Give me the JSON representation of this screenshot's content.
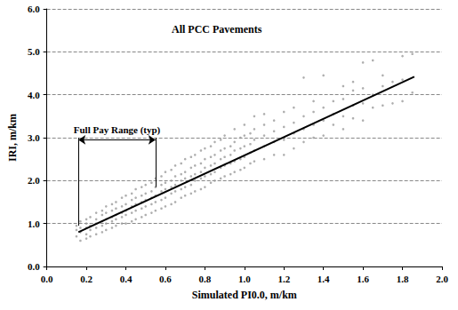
{
  "chart_data": {
    "type": "scatter",
    "title": "All PCC Pavements",
    "x_label": "Simulated PI0.0, m/km",
    "y_label": "IRI, m/km",
    "xlim": [
      0,
      2.0
    ],
    "xticks": [
      {
        "value": 0,
        "label": "0.0"
      },
      0.2,
      0.4,
      0.6,
      0.8,
      {
        "value": 1,
        "label": "1.0"
      },
      1.2,
      1.4,
      1.6,
      1.8,
      {
        "value": 2,
        "label": "2.0"
      }
    ],
    "ylim": [
      0,
      6.0
    ],
    "yticks": [
      {
        "value": 0,
        "label": "0.0"
      },
      {
        "value": 1,
        "label": "1.0"
      },
      {
        "value": 2,
        "label": "2.0"
      },
      {
        "value": 3,
        "label": "3.0"
      },
      {
        "value": 4,
        "label": "4.0"
      },
      {
        "value": 5,
        "label": "5.0"
      },
      {
        "value": 6,
        "label": "6.0"
      }
    ],
    "grid": true,
    "series": [
      {
        "type": "scatter",
        "color": "#9a9a9a",
        "marker": "circle",
        "x": [
          0.15,
          0.15,
          0.15,
          0.17,
          0.17,
          0.17,
          0.17,
          0.2,
          0.2,
          0.2,
          0.2,
          0.2,
          0.22,
          0.22,
          0.22,
          0.22,
          0.25,
          0.25,
          0.25,
          0.25,
          0.25,
          0.28,
          0.28,
          0.28,
          0.28,
          0.28,
          0.3,
          0.3,
          0.3,
          0.3,
          0.3,
          0.33,
          0.33,
          0.33,
          0.33,
          0.33,
          0.35,
          0.35,
          0.35,
          0.35,
          0.35,
          0.38,
          0.38,
          0.38,
          0.38,
          0.38,
          0.4,
          0.4,
          0.4,
          0.4,
          0.4,
          0.43,
          0.43,
          0.43,
          0.43,
          0.43,
          0.45,
          0.45,
          0.45,
          0.45,
          0.45,
          0.48,
          0.48,
          0.48,
          0.48,
          0.48,
          0.5,
          0.5,
          0.5,
          0.5,
          0.5,
          0.53,
          0.53,
          0.53,
          0.53,
          0.53,
          0.55,
          0.55,
          0.55,
          0.55,
          0.55,
          0.58,
          0.58,
          0.58,
          0.58,
          0.58,
          0.6,
          0.6,
          0.6,
          0.6,
          0.6,
          0.63,
          0.63,
          0.63,
          0.63,
          0.63,
          0.65,
          0.65,
          0.65,
          0.65,
          0.65,
          0.68,
          0.68,
          0.68,
          0.68,
          0.68,
          0.7,
          0.7,
          0.7,
          0.7,
          0.7,
          0.73,
          0.73,
          0.73,
          0.73,
          0.73,
          0.75,
          0.75,
          0.75,
          0.75,
          0.75,
          0.78,
          0.78,
          0.78,
          0.78,
          0.78,
          0.8,
          0.8,
          0.8,
          0.8,
          0.8,
          0.83,
          0.83,
          0.83,
          0.83,
          0.83,
          0.85,
          0.85,
          0.85,
          0.85,
          0.85,
          0.88,
          0.88,
          0.88,
          0.88,
          0.88,
          0.9,
          0.9,
          0.9,
          0.9,
          0.9,
          0.93,
          0.93,
          0.93,
          0.93,
          0.95,
          0.95,
          0.95,
          0.95,
          0.95,
          0.98,
          0.98,
          0.98,
          0.98,
          1.0,
          1.0,
          1.0,
          1.0,
          1.0,
          1.03,
          1.03,
          1.03,
          1.03,
          1.05,
          1.05,
          1.05,
          1.05,
          1.05,
          1.1,
          1.1,
          1.1,
          1.1,
          1.1,
          1.15,
          1.15,
          1.15,
          1.15,
          1.2,
          1.2,
          1.2,
          1.2,
          1.25,
          1.25,
          1.25,
          1.25,
          1.3,
          1.3,
          1.3,
          1.3,
          1.35,
          1.35,
          1.35,
          1.35,
          1.4,
          1.4,
          1.4,
          1.4,
          1.45,
          1.45,
          1.45,
          1.5,
          1.5,
          1.5,
          1.5,
          1.55,
          1.55,
          1.55,
          1.55,
          1.6,
          1.6,
          1.6,
          1.6,
          1.65,
          1.65,
          1.65,
          1.7,
          1.7,
          1.7,
          1.75,
          1.75,
          1.8,
          1.8,
          1.8,
          1.85,
          1.85
        ],
        "values": [
          0.7,
          0.85,
          0.95,
          0.6,
          0.8,
          0.9,
          1.05,
          0.65,
          0.75,
          0.9,
          1.0,
          1.1,
          0.7,
          0.85,
          0.95,
          1.15,
          0.75,
          0.9,
          1.0,
          1.1,
          1.25,
          0.8,
          0.95,
          1.05,
          1.2,
          1.3,
          0.85,
          1.0,
          1.1,
          1.25,
          1.4,
          0.9,
          1.05,
          1.15,
          1.3,
          1.45,
          0.95,
          1.1,
          1.2,
          1.35,
          1.5,
          1.0,
          1.15,
          1.25,
          1.4,
          1.6,
          1.0,
          1.2,
          1.3,
          1.45,
          1.65,
          1.05,
          1.25,
          1.4,
          1.55,
          1.7,
          1.1,
          1.3,
          1.45,
          1.6,
          1.8,
          1.15,
          1.35,
          1.5,
          1.65,
          1.85,
          1.2,
          1.4,
          1.55,
          1.7,
          1.9,
          1.25,
          1.45,
          1.6,
          1.75,
          1.95,
          1.3,
          1.5,
          1.65,
          1.85,
          2.05,
          1.35,
          1.55,
          1.75,
          1.9,
          2.1,
          1.4,
          1.6,
          1.8,
          1.95,
          2.2,
          1.45,
          1.7,
          1.85,
          2.0,
          2.25,
          1.5,
          1.75,
          1.9,
          2.1,
          2.35,
          1.6,
          1.8,
          2.0,
          2.15,
          2.4,
          1.65,
          1.85,
          2.05,
          2.2,
          2.5,
          1.7,
          1.9,
          2.1,
          2.3,
          2.55,
          1.75,
          2.0,
          2.15,
          2.35,
          2.6,
          1.8,
          2.05,
          2.2,
          2.4,
          2.7,
          1.85,
          2.1,
          2.3,
          2.5,
          2.75,
          1.95,
          2.15,
          2.35,
          2.55,
          2.8,
          2.0,
          2.2,
          2.4,
          2.6,
          2.9,
          2.05,
          2.3,
          2.5,
          2.7,
          2.95,
          2.1,
          2.35,
          2.55,
          2.75,
          3.05,
          2.15,
          2.4,
          2.6,
          2.8,
          2.2,
          2.45,
          2.7,
          2.9,
          3.2,
          2.25,
          2.5,
          2.75,
          3.0,
          2.3,
          2.55,
          2.8,
          3.05,
          3.3,
          2.4,
          2.65,
          2.85,
          3.1,
          2.45,
          2.7,
          2.95,
          3.2,
          3.5,
          2.5,
          2.8,
          3.05,
          3.3,
          3.55,
          2.6,
          2.9,
          3.15,
          3.4,
          2.6,
          2.95,
          3.25,
          3.6,
          2.75,
          3.1,
          3.35,
          3.7,
          2.9,
          3.2,
          3.5,
          4.4,
          3.0,
          3.3,
          3.6,
          3.85,
          3.05,
          3.4,
          3.7,
          4.45,
          3.3,
          3.55,
          3.85,
          3.2,
          3.5,
          3.9,
          4.2,
          3.45,
          3.75,
          4.1,
          4.3,
          3.4,
          3.8,
          4.15,
          4.75,
          3.7,
          4.0,
          4.8,
          3.75,
          4.2,
          4.45,
          3.8,
          4.3,
          3.85,
          4.35,
          4.9,
          4.05,
          4.95
        ]
      },
      {
        "type": "line",
        "color": "#000000",
        "line_style": "solid",
        "x": [
          0.16,
          1.86
        ],
        "values": [
          0.8,
          4.42
        ]
      }
    ],
    "annotation": {
      "text": "Full Pay Range (typ)",
      "x": [
        0.16,
        0.55
      ],
      "y": 2.95,
      "bar_bottoms": [
        0.95,
        1.85
      ],
      "bar_top": 3.0
    }
  }
}
